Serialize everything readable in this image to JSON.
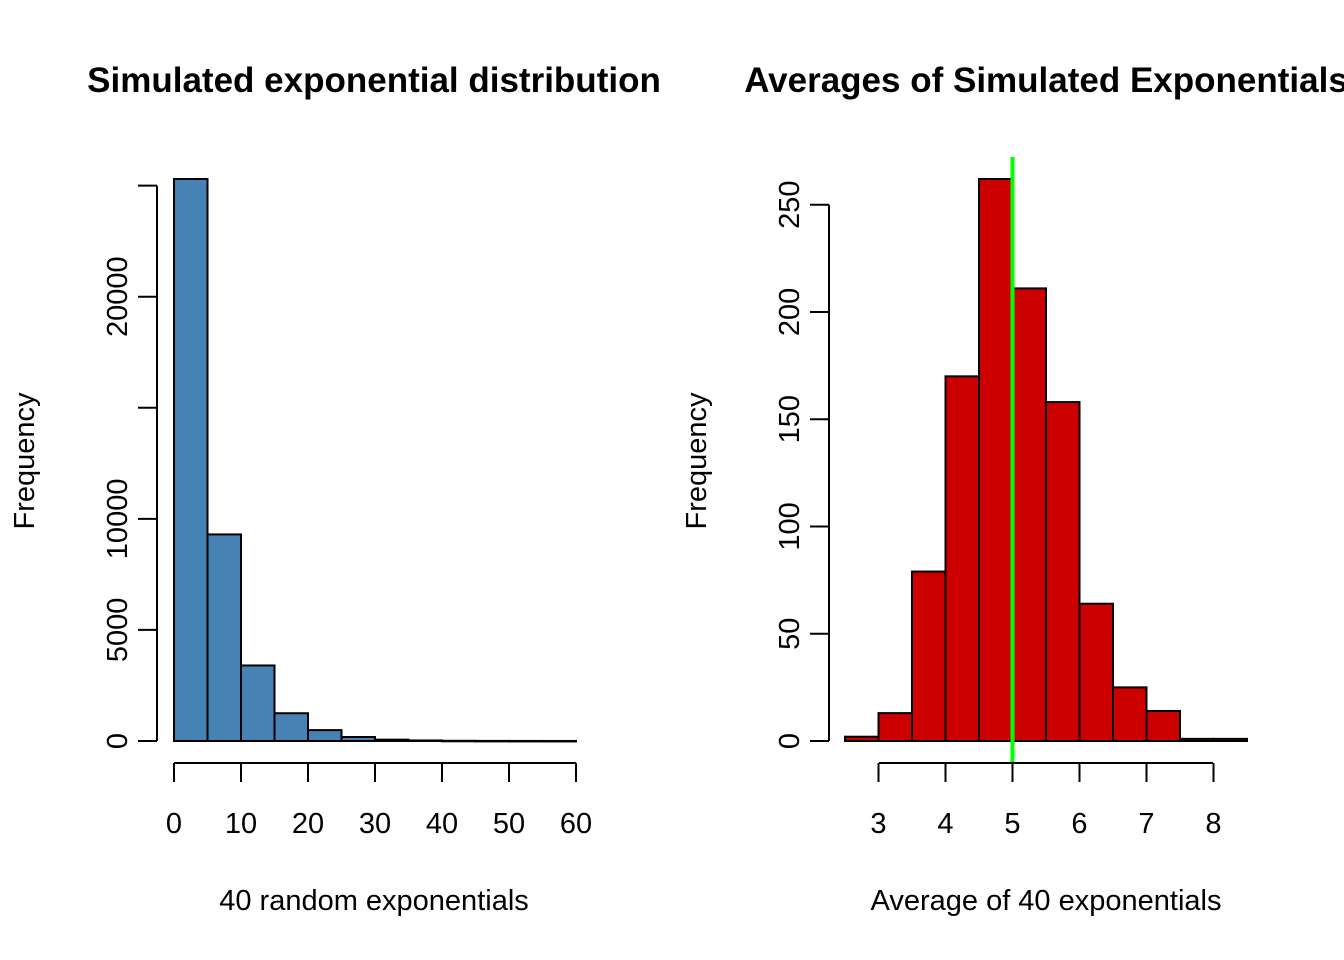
{
  "chart_data": [
    {
      "type": "bar",
      "title": "Simulated exponential distribution",
      "xlabel": "40 random exponentials",
      "ylabel": "Frequency",
      "bar_color": "#4682B4",
      "bin_edges": [
        0,
        5,
        10,
        15,
        20,
        25,
        30,
        35,
        40,
        45,
        50,
        55,
        60
      ],
      "values": [
        25300,
        9300,
        3400,
        1250,
        490,
        180,
        60,
        25,
        10,
        5,
        3,
        2
      ],
      "xlim": [
        0,
        60
      ],
      "ylim": [
        0,
        25300
      ],
      "x_ticks": [
        "0",
        "10",
        "20",
        "30",
        "40",
        "50",
        "60"
      ],
      "y_tick_values": [
        0,
        5000,
        10000,
        15000,
        20000,
        25000
      ],
      "y_tick_labels": [
        "0",
        "5000",
        "10000",
        "",
        "20000",
        ""
      ],
      "grid": false,
      "legend": "none"
    },
    {
      "type": "bar",
      "title": "Averages of Simulated Exponentials",
      "xlabel": "Average of 40 exponentials",
      "ylabel": "Frequency",
      "bar_color": "#CD0000",
      "bin_edges": [
        2.5,
        3.0,
        3.5,
        4.0,
        4.5,
        5.0,
        5.5,
        6.0,
        6.5,
        7.0,
        7.5,
        8.0,
        8.5
      ],
      "values": [
        2,
        13,
        79,
        170,
        262,
        211,
        158,
        64,
        25,
        14,
        1,
        1
      ],
      "xlim": [
        2.5,
        8.5
      ],
      "ylim": [
        0,
        262
      ],
      "x_ticks": [
        "3",
        "4",
        "5",
        "6",
        "7",
        "8"
      ],
      "y_tick_values": [
        0,
        50,
        100,
        150,
        200,
        250
      ],
      "y_tick_labels": [
        "0",
        "50",
        "100",
        "150",
        "200",
        "250"
      ],
      "vline": {
        "x": 5,
        "color": "#00FF00"
      },
      "grid": false,
      "legend": "none"
    }
  ]
}
